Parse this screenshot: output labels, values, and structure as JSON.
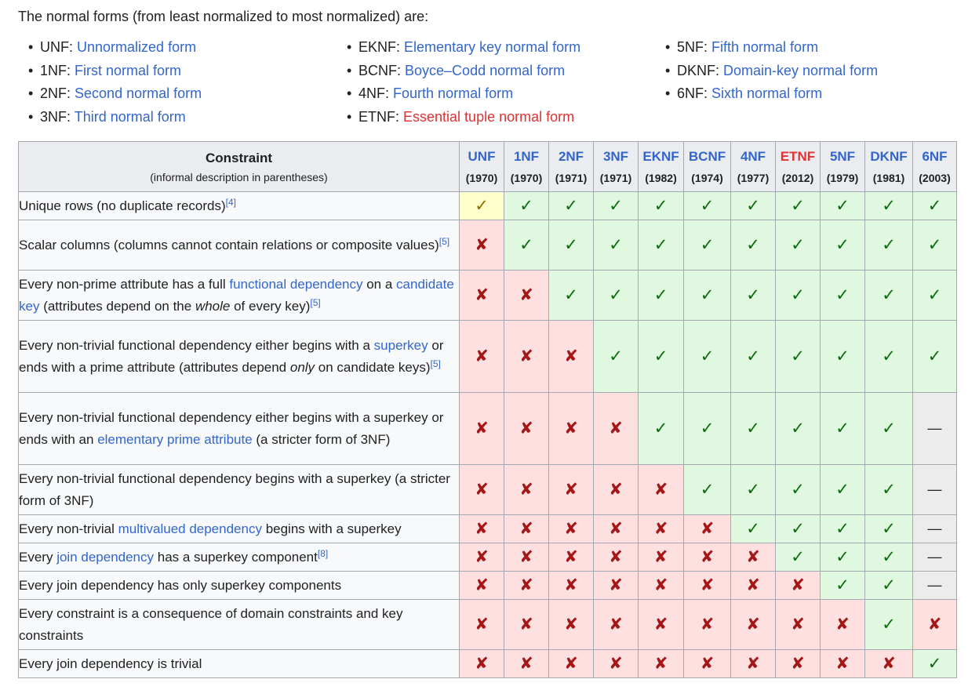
{
  "intro": "The normal forms (from least normalized to most normalized) are:",
  "bullet": "•",
  "forms": [
    [
      {
        "abbr": "UNF:",
        "name": "Unnormalized form",
        "missing": false
      },
      {
        "abbr": "1NF:",
        "name": "First normal form",
        "missing": false
      },
      {
        "abbr": "2NF:",
        "name": "Second normal form",
        "missing": false
      },
      {
        "abbr": "3NF:",
        "name": "Third normal form",
        "missing": false
      }
    ],
    [
      {
        "abbr": "EKNF:",
        "name": "Elementary key normal form",
        "missing": false
      },
      {
        "abbr": "BCNF:",
        "name": "Boyce–Codd normal form",
        "missing": false
      },
      {
        "abbr": "4NF:",
        "name": "Fourth normal form",
        "missing": false
      },
      {
        "abbr": "ETNF:",
        "name": "Essential tuple normal form",
        "missing": true
      }
    ],
    [
      {
        "abbr": "5NF:",
        "name": "Fifth normal form",
        "missing": false
      },
      {
        "abbr": "DKNF:",
        "name": "Domain-key normal form",
        "missing": false
      },
      {
        "abbr": "6NF:",
        "name": "Sixth normal form",
        "missing": false
      }
    ]
  ],
  "table": {
    "constraint_header": "Constraint",
    "constraint_subheader": "(informal description in parentheses)",
    "columns": [
      {
        "name": "UNF",
        "year": "(1970)",
        "missing": false
      },
      {
        "name": "1NF",
        "year": "(1970)",
        "missing": false
      },
      {
        "name": "2NF",
        "year": "(1971)",
        "missing": false
      },
      {
        "name": "3NF",
        "year": "(1971)",
        "missing": false
      },
      {
        "name": "EKNF",
        "year": "(1982)",
        "missing": false
      },
      {
        "name": "BCNF",
        "year": "(1974)",
        "missing": false
      },
      {
        "name": "4NF",
        "year": "(1977)",
        "missing": false
      },
      {
        "name": "ETNF",
        "year": "(2012)",
        "missing": true
      },
      {
        "name": "5NF",
        "year": "(1979)",
        "missing": false
      },
      {
        "name": "DKNF",
        "year": "(1981)",
        "missing": false
      },
      {
        "name": "6NF",
        "year": "(2003)",
        "missing": false
      }
    ],
    "symbols": {
      "yes": "✓",
      "no": "✘",
      "maybe": "✓",
      "na": "—"
    },
    "rows": [
      {
        "desc": [
          {
            "t": "Unique rows (no duplicate records)"
          },
          {
            "s": "[4]"
          }
        ],
        "cells": [
          "maybe",
          "yes",
          "yes",
          "yes",
          "yes",
          "yes",
          "yes",
          "yes",
          "yes",
          "yes",
          "yes"
        ]
      },
      {
        "desc": [
          {
            "t": "Scalar columns (columns cannot contain relations or composite values)"
          },
          {
            "s": "[5]"
          }
        ],
        "cells": [
          "no",
          "yes",
          "yes",
          "yes",
          "yes",
          "yes",
          "yes",
          "yes",
          "yes",
          "yes",
          "yes"
        ]
      },
      {
        "desc": [
          {
            "t": "Every non-prime attribute has a full "
          },
          {
            "l": "functional dependency"
          },
          {
            "t": " on a "
          },
          {
            "l": "candidate key"
          },
          {
            "t": " (attributes depend on the "
          },
          {
            "i": "whole"
          },
          {
            "t": " of every key)"
          },
          {
            "s": "[5]"
          }
        ],
        "cells": [
          "no",
          "no",
          "yes",
          "yes",
          "yes",
          "yes",
          "yes",
          "yes",
          "yes",
          "yes",
          "yes"
        ]
      },
      {
        "desc": [
          {
            "t": "Every non-trivial functional dependency either begins with a "
          },
          {
            "l": "superkey"
          },
          {
            "t": " or ends with a prime attribute (attributes depend "
          },
          {
            "i": "only"
          },
          {
            "t": " on candidate keys)"
          },
          {
            "s": "[5]"
          }
        ],
        "cells": [
          "no",
          "no",
          "no",
          "yes",
          "yes",
          "yes",
          "yes",
          "yes",
          "yes",
          "yes",
          "yes"
        ]
      },
      {
        "desc": [
          {
            "t": "Every non-trivial functional dependency either begins with a superkey or ends with an "
          },
          {
            "l": "elementary prime attribute"
          },
          {
            "t": " (a stricter form of 3NF)"
          }
        ],
        "cells": [
          "no",
          "no",
          "no",
          "no",
          "yes",
          "yes",
          "yes",
          "yes",
          "yes",
          "yes",
          "na"
        ]
      },
      {
        "desc": [
          {
            "t": "Every non-trivial functional dependency begins with a superkey (a stricter form of 3NF)"
          }
        ],
        "cells": [
          "no",
          "no",
          "no",
          "no",
          "no",
          "yes",
          "yes",
          "yes",
          "yes",
          "yes",
          "na"
        ]
      },
      {
        "desc": [
          {
            "t": "Every non-trivial "
          },
          {
            "l": "multivalued dependency"
          },
          {
            "t": " begins with a superkey"
          }
        ],
        "cells": [
          "no",
          "no",
          "no",
          "no",
          "no",
          "no",
          "yes",
          "yes",
          "yes",
          "yes",
          "na"
        ]
      },
      {
        "desc": [
          {
            "t": "Every "
          },
          {
            "l": "join dependency"
          },
          {
            "t": " has a superkey component"
          },
          {
            "s": "[8]"
          }
        ],
        "cells": [
          "no",
          "no",
          "no",
          "no",
          "no",
          "no",
          "no",
          "yes",
          "yes",
          "yes",
          "na"
        ]
      },
      {
        "desc": [
          {
            "t": "Every join dependency has only superkey components"
          }
        ],
        "cells": [
          "no",
          "no",
          "no",
          "no",
          "no",
          "no",
          "no",
          "no",
          "yes",
          "yes",
          "na"
        ]
      },
      {
        "desc": [
          {
            "t": "Every constraint is a consequence of domain constraints and key constraints"
          }
        ],
        "cells": [
          "no",
          "no",
          "no",
          "no",
          "no",
          "no",
          "no",
          "no",
          "no",
          "yes",
          "no"
        ]
      },
      {
        "desc": [
          {
            "t": "Every join dependency is trivial"
          }
        ],
        "cells": [
          "no",
          "no",
          "no",
          "no",
          "no",
          "no",
          "no",
          "no",
          "no",
          "no",
          "yes"
        ]
      }
    ]
  }
}
